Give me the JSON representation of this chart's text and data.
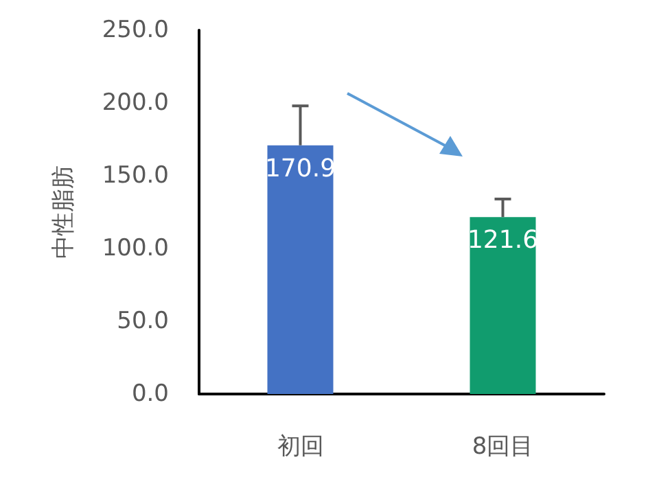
{
  "chart_data": {
    "type": "bar",
    "ylabel": "中性脂肪",
    "categories": [
      "初回",
      "8回目"
    ],
    "values": [
      170.9,
      121.6
    ],
    "colors": [
      "#4472c4",
      "#119c6e"
    ],
    "errors": [
      [
        170.9,
        198
      ],
      [
        121.6,
        134
      ]
    ],
    "ylim": [
      0,
      250
    ],
    "yticks": [
      {
        "value": 0,
        "label": "0.0"
      },
      {
        "value": 50,
        "label": "50.0"
      },
      {
        "value": 100,
        "label": "100.0"
      },
      {
        "value": 150,
        "label": "150.0"
      },
      {
        "value": 200,
        "label": "200.0"
      },
      {
        "value": 250,
        "label": "250.0"
      }
    ],
    "data_labels": true,
    "grid": false
  }
}
